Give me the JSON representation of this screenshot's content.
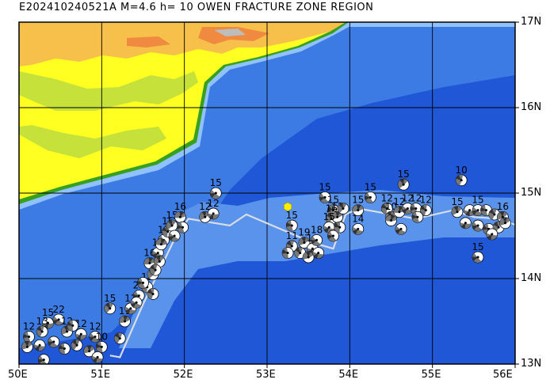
{
  "title": "E202410240521A  M=4.6  h= 10  OWEN FRACTURE ZONE REGION",
  "event": {
    "id": "E202410240521A",
    "magnitude": 4.6,
    "depth_km": 10,
    "region": "OWEN FRACTURE ZONE REGION",
    "lon": 53.25,
    "lat": 14.84,
    "marker_color": "#ffee00"
  },
  "axes": {
    "lon_range": [
      50,
      56
    ],
    "lat_range": [
      13,
      17
    ],
    "x_ticks": [
      {
        "value": 50,
        "label": "50E"
      },
      {
        "value": 51,
        "label": "51E"
      },
      {
        "value": 52,
        "label": "52E"
      },
      {
        "value": 53,
        "label": "53E"
      },
      {
        "value": 54,
        "label": "54E"
      },
      {
        "value": 55,
        "label": "55E"
      },
      {
        "value": 56,
        "label": "56E"
      }
    ],
    "y_ticks": [
      {
        "value": 17,
        "label": "17N"
      },
      {
        "value": 16,
        "label": "16N"
      },
      {
        "value": 15,
        "label": "15N"
      },
      {
        "value": 14,
        "label": "14N"
      },
      {
        "value": 13,
        "label": "13N"
      }
    ]
  },
  "colors": {
    "deep_ocean": "#1f57d6",
    "mid_ocean": "#3d7be4",
    "shelf": "#8fc2ff",
    "lowland": "#ffff22",
    "upland": "#c5e13a",
    "coast_green": "#38a020",
    "highland": "#f6c04a",
    "peak": "#f08a40",
    "plate_boundary": "#d8dde6",
    "mechanism_fill": "#777777",
    "mechanism_light": "#ffffff"
  },
  "plate_boundary": [
    [
      51.1,
      13.1
    ],
    [
      51.22,
      13.08
    ],
    [
      51.5,
      13.7
    ],
    [
      51.9,
      14.5
    ],
    [
      52.05,
      14.7
    ],
    [
      52.55,
      14.62
    ],
    [
      52.75,
      14.75
    ],
    [
      53.55,
      14.42
    ],
    [
      53.8,
      14.35
    ],
    [
      53.95,
      14.75
    ],
    [
      54.1,
      14.82
    ],
    [
      54.8,
      14.7
    ],
    [
      55.25,
      14.8
    ],
    [
      55.5,
      14.72
    ],
    [
      55.8,
      14.7
    ],
    [
      56,
      14.63
    ]
  ],
  "mechanisms": [
    {
      "lon": 50.35,
      "lat": 13.48,
      "depth": "15"
    },
    {
      "lon": 50.48,
      "lat": 13.52,
      "depth": "22"
    },
    {
      "lon": 50.12,
      "lat": 13.32,
      "depth": "12"
    },
    {
      "lon": 50.28,
      "lat": 13.38,
      "depth": "13"
    },
    {
      "lon": 50.58,
      "lat": 13.38,
      "depth": "12"
    },
    {
      "lon": 50.75,
      "lat": 13.35,
      "depth": "12"
    },
    {
      "lon": 50.92,
      "lat": 13.32,
      "depth": "12"
    },
    {
      "lon": 51.0,
      "lat": 13.2,
      "depth": "10"
    },
    {
      "lon": 51.22,
      "lat": 13.3,
      "depth": ""
    },
    {
      "lon": 50.1,
      "lat": 13.2,
      "depth": ""
    },
    {
      "lon": 50.25,
      "lat": 13.22,
      "depth": ""
    },
    {
      "lon": 50.42,
      "lat": 13.26,
      "depth": ""
    },
    {
      "lon": 50.55,
      "lat": 13.18,
      "depth": ""
    },
    {
      "lon": 50.7,
      "lat": 13.22,
      "depth": ""
    },
    {
      "lon": 50.85,
      "lat": 13.15,
      "depth": ""
    },
    {
      "lon": 50.95,
      "lat": 13.08,
      "depth": ""
    },
    {
      "lon": 50.3,
      "lat": 13.05,
      "depth": ""
    },
    {
      "lon": 50.65,
      "lat": 13.45,
      "depth": ""
    },
    {
      "lon": 51.1,
      "lat": 13.65,
      "depth": "15"
    },
    {
      "lon": 51.28,
      "lat": 13.5,
      "depth": "11"
    },
    {
      "lon": 51.35,
      "lat": 13.65,
      "depth": "12"
    },
    {
      "lon": 51.45,
      "lat": 13.8,
      "depth": "25"
    },
    {
      "lon": 51.55,
      "lat": 13.9,
      "depth": "19"
    },
    {
      "lon": 51.62,
      "lat": 14.05,
      "depth": "12"
    },
    {
      "lon": 51.58,
      "lat": 14.18,
      "depth": "16"
    },
    {
      "lon": 51.68,
      "lat": 14.3,
      "depth": "15"
    },
    {
      "lon": 51.75,
      "lat": 14.45,
      "depth": "15"
    },
    {
      "lon": 51.8,
      "lat": 14.55,
      "depth": "15"
    },
    {
      "lon": 51.85,
      "lat": 14.62,
      "depth": "15"
    },
    {
      "lon": 51.95,
      "lat": 14.72,
      "depth": "16"
    },
    {
      "lon": 51.42,
      "lat": 13.72,
      "depth": ""
    },
    {
      "lon": 51.5,
      "lat": 13.95,
      "depth": ""
    },
    {
      "lon": 51.62,
      "lat": 13.82,
      "depth": ""
    },
    {
      "lon": 51.7,
      "lat": 14.2,
      "depth": ""
    },
    {
      "lon": 51.72,
      "lat": 14.4,
      "depth": ""
    },
    {
      "lon": 51.88,
      "lat": 14.5,
      "depth": ""
    },
    {
      "lon": 51.98,
      "lat": 14.6,
      "depth": ""
    },
    {
      "lon": 51.65,
      "lat": 14.1,
      "depth": ""
    },
    {
      "lon": 52.25,
      "lat": 14.72,
      "depth": "12"
    },
    {
      "lon": 52.35,
      "lat": 14.76,
      "depth": "12"
    },
    {
      "lon": 52.38,
      "lat": 15.0,
      "depth": "15"
    },
    {
      "lon": 53.3,
      "lat": 14.62,
      "depth": "15"
    },
    {
      "lon": 53.3,
      "lat": 14.38,
      "depth": "11"
    },
    {
      "lon": 53.45,
      "lat": 14.42,
      "depth": "19"
    },
    {
      "lon": 53.55,
      "lat": 14.35,
      "depth": "14"
    },
    {
      "lon": 53.6,
      "lat": 14.45,
      "depth": "18"
    },
    {
      "lon": 53.25,
      "lat": 14.3,
      "depth": ""
    },
    {
      "lon": 53.4,
      "lat": 14.3,
      "depth": ""
    },
    {
      "lon": 53.5,
      "lat": 14.25,
      "depth": ""
    },
    {
      "lon": 53.62,
      "lat": 14.3,
      "depth": ""
    },
    {
      "lon": 53.7,
      "lat": 14.95,
      "depth": "15"
    },
    {
      "lon": 53.8,
      "lat": 14.8,
      "depth": "15"
    },
    {
      "lon": 53.78,
      "lat": 14.7,
      "depth": "16"
    },
    {
      "lon": 53.85,
      "lat": 14.72,
      "depth": "13"
    },
    {
      "lon": 53.75,
      "lat": 14.6,
      "depth": "15"
    },
    {
      "lon": 53.8,
      "lat": 14.5,
      "depth": ""
    },
    {
      "lon": 53.88,
      "lat": 14.6,
      "depth": ""
    },
    {
      "lon": 53.92,
      "lat": 14.82,
      "depth": ""
    },
    {
      "lon": 54.1,
      "lat": 14.8,
      "depth": "15"
    },
    {
      "lon": 54.1,
      "lat": 14.58,
      "depth": "14"
    },
    {
      "lon": 54.25,
      "lat": 14.95,
      "depth": "15"
    },
    {
      "lon": 54.45,
      "lat": 14.82,
      "depth": "12"
    },
    {
      "lon": 54.5,
      "lat": 14.72,
      "depth": "10"
    },
    {
      "lon": 54.6,
      "lat": 14.78,
      "depth": "12"
    },
    {
      "lon": 54.7,
      "lat": 14.82,
      "depth": "12"
    },
    {
      "lon": 54.8,
      "lat": 14.82,
      "depth": "12"
    },
    {
      "lon": 54.92,
      "lat": 14.8,
      "depth": "12"
    },
    {
      "lon": 54.65,
      "lat": 15.1,
      "depth": "15"
    },
    {
      "lon": 54.5,
      "lat": 14.68,
      "depth": ""
    },
    {
      "lon": 54.62,
      "lat": 14.58,
      "depth": ""
    },
    {
      "lon": 54.82,
      "lat": 14.72,
      "depth": ""
    },
    {
      "lon": 55.35,
      "lat": 15.15,
      "depth": "10"
    },
    {
      "lon": 55.3,
      "lat": 14.78,
      "depth": "15"
    },
    {
      "lon": 55.45,
      "lat": 14.8,
      "depth": ""
    },
    {
      "lon": 55.55,
      "lat": 14.8,
      "depth": "15"
    },
    {
      "lon": 55.65,
      "lat": 14.8,
      "depth": ""
    },
    {
      "lon": 55.75,
      "lat": 14.75,
      "depth": ""
    },
    {
      "lon": 55.85,
      "lat": 14.72,
      "depth": "16"
    },
    {
      "lon": 55.4,
      "lat": 14.65,
      "depth": ""
    },
    {
      "lon": 55.55,
      "lat": 14.62,
      "depth": ""
    },
    {
      "lon": 55.68,
      "lat": 14.58,
      "depth": ""
    },
    {
      "lon": 55.8,
      "lat": 14.6,
      "depth": ""
    },
    {
      "lon": 55.88,
      "lat": 14.65,
      "depth": ""
    },
    {
      "lon": 55.72,
      "lat": 14.52,
      "depth": ""
    },
    {
      "lon": 55.55,
      "lat": 14.25,
      "depth": "15"
    }
  ]
}
